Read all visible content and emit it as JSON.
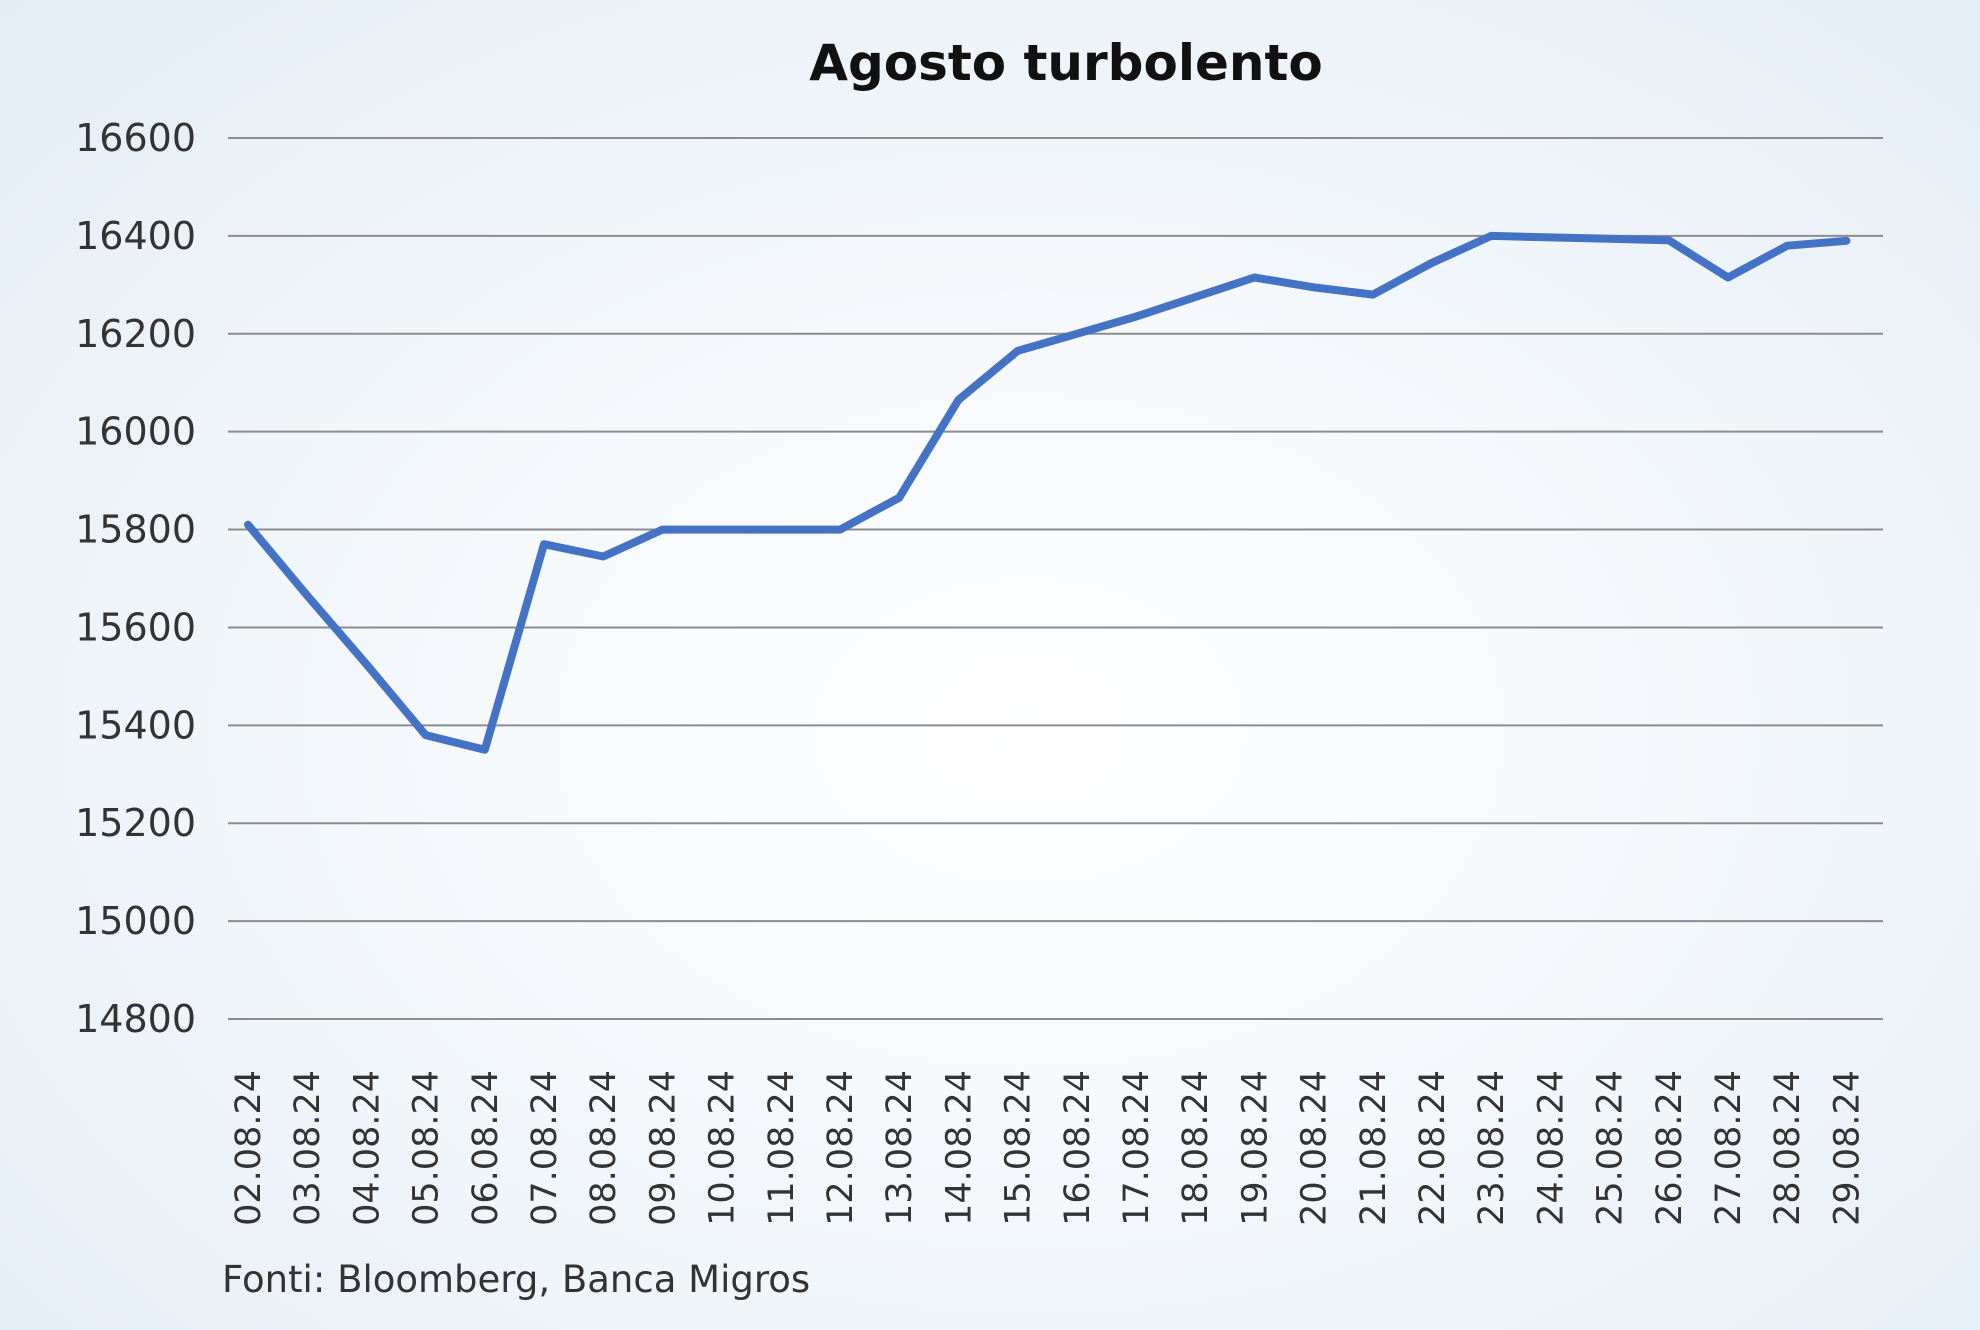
{
  "chart_data": {
    "type": "line",
    "title": "Agosto turbolento",
    "xlabel": "",
    "ylabel": "",
    "x": [
      "02.08.24",
      "03.08.24",
      "04.08.24",
      "05.08.24",
      "06.08.24",
      "07.08.24",
      "08.08.24",
      "09.08.24",
      "10.08.24",
      "11.08.24",
      "12.08.24",
      "13.08.24",
      "14.08.24",
      "15.08.24",
      "16.08.24",
      "17.08.24",
      "18.08.24",
      "19.08.24",
      "20.08.24",
      "21.08.24",
      "22.08.24",
      "23.08.24",
      "24.08.24",
      "25.08.24",
      "26.08.24",
      "27.08.24",
      "28.08.24",
      "29.08.24"
    ],
    "series": [
      {
        "color": "#4472c4",
        "values": [
          15810,
          15665,
          15525,
          15380,
          15350,
          15770,
          15745,
          15800,
          15800,
          15800,
          15800,
          15865,
          16065,
          16165,
          16200,
          16235,
          16275,
          16315,
          16295,
          16280,
          16345,
          16400,
          16397,
          16394,
          16391,
          16315,
          16380,
          16390
        ]
      }
    ],
    "y_ticks": [
      "16600",
      "16400",
      "16200",
      "16000",
      "15800",
      "15600",
      "15400",
      "15200",
      "15000",
      "14800"
    ],
    "ylim": [
      14800,
      16600
    ],
    "grid": true,
    "legend": "none"
  },
  "source": "Fonti: Bloomberg, Banca Migros"
}
